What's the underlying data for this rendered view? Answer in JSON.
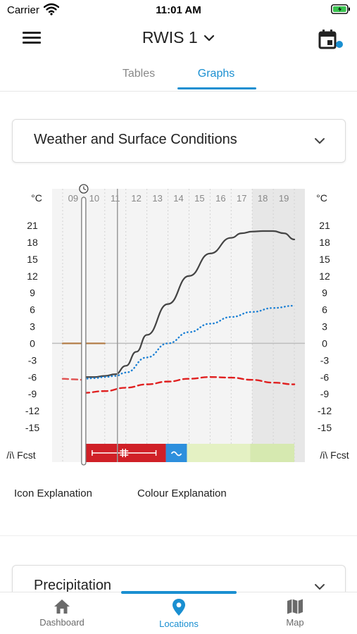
{
  "status_bar": {
    "carrier": "Carrier",
    "time": "11:01 AM"
  },
  "header": {
    "title": "RWIS 1",
    "calendar_badge_color": "#1a8fd1"
  },
  "tabs": [
    {
      "label": "Tables",
      "active": false
    },
    {
      "label": "Graphs",
      "active": true
    }
  ],
  "sections": {
    "weather": {
      "title": "Weather and Surface Conditions"
    },
    "precipitation": {
      "title": "Precipitation"
    }
  },
  "chart_data": {
    "type": "line",
    "x_unit": "hour",
    "x_ticks": [
      "09",
      "10",
      "11",
      "12",
      "13",
      "14",
      "15",
      "16",
      "17",
      "18",
      "19"
    ],
    "y_ticks": [
      21,
      18,
      15,
      12,
      9,
      6,
      3,
      0,
      -3,
      -6,
      -9,
      -12,
      -15
    ],
    "ylim": [
      -15,
      21
    ],
    "y_unit_left": "°C",
    "y_unit_right": "°C",
    "forecast_label": "/i\\ Fcst",
    "series": [
      {
        "color": "#444444",
        "style": "solid",
        "x": [
          10.0,
          10.5,
          11.0,
          11.5,
          12.0,
          12.5,
          13.0,
          14.0,
          15.0,
          16.0,
          17.0,
          17.5,
          18.0,
          18.5,
          19.0,
          19.5,
          20.0
        ],
        "values": [
          -6.0,
          -6.0,
          -5.8,
          -5.5,
          -4.0,
          -1.5,
          1.5,
          7.0,
          12.0,
          16.0,
          18.8,
          19.6,
          19.9,
          20.0,
          20.0,
          19.6,
          18.5
        ]
      },
      {
        "color": "#1a7fd4",
        "style": "dotted",
        "x": [
          10.0,
          10.5,
          11.0,
          11.5,
          12.0,
          13.0,
          14.0,
          15.0,
          16.0,
          17.0,
          18.0,
          19.0,
          20.0
        ],
        "values": [
          -6.3,
          -6.2,
          -6.0,
          -5.8,
          -5.2,
          -2.5,
          0.0,
          2.0,
          3.5,
          4.7,
          5.6,
          6.3,
          6.7
        ]
      },
      {
        "color": "#e02020",
        "style": "dashed",
        "x": [
          10.0,
          11.0,
          12.0,
          13.0,
          14.0,
          15.0,
          16.0,
          17.0,
          18.0,
          19.0,
          20.0
        ],
        "values": [
          -8.8,
          -8.5,
          -7.9,
          -7.3,
          -6.8,
          -6.3,
          -6.0,
          -6.1,
          -6.5,
          -7.0,
          -7.3
        ]
      },
      {
        "color": "#e05050",
        "style": "dashed",
        "x": [
          9.0,
          9.5,
          10.0
        ],
        "values": [
          -6.3,
          -6.4,
          -6.5
        ]
      },
      {
        "color": "#b07840",
        "style": "solid",
        "x": [
          9.0,
          10.0,
          11.0
        ],
        "values": [
          0.0,
          0.0,
          0.0
        ]
      }
    ],
    "current_time_x": 10.0,
    "forecast_start_x": 11.6,
    "night_shading_from_x": 18.0,
    "condition_strip": [
      {
        "from": 10.0,
        "to": 13.9,
        "color": "#d02027"
      },
      {
        "from": 13.9,
        "to": 14.9,
        "color": "#2d8fdd"
      },
      {
        "from": 14.9,
        "to": 17.9,
        "color": "#e4f1c3"
      },
      {
        "from": 17.9,
        "to": 20.0,
        "color": "#d6e9b0"
      }
    ]
  },
  "explanations": {
    "icon": "Icon Explanation",
    "colour": "Colour Explanation"
  },
  "bottom_nav": [
    {
      "label": "Dashboard",
      "icon": "home-icon",
      "active": false
    },
    {
      "label": "Locations",
      "icon": "location-pin-icon",
      "active": true
    },
    {
      "label": "Map",
      "icon": "map-icon",
      "active": false
    }
  ]
}
